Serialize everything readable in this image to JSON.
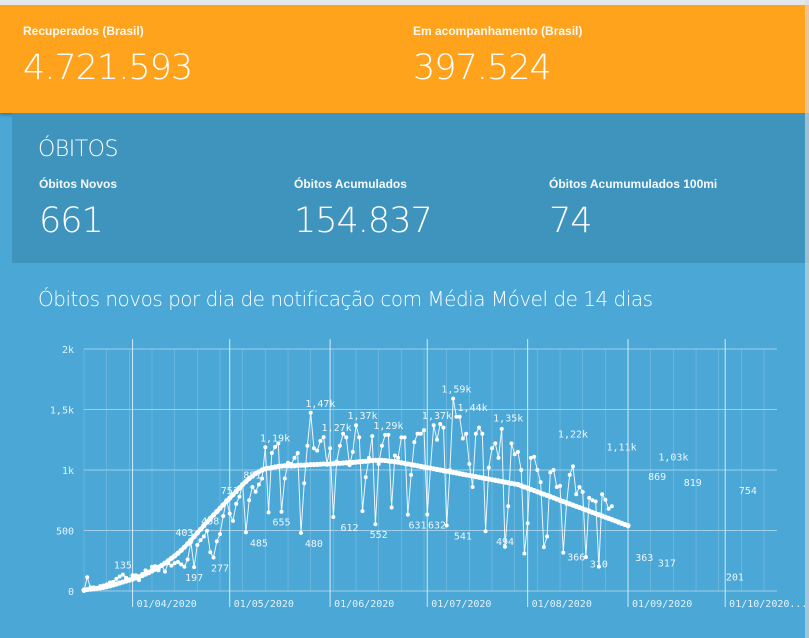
{
  "cards": {
    "recuperados": {
      "label": "Recuperados (Brasil)",
      "value": "4.721.593"
    },
    "acompanhamento": {
      "label": "Em acompanhamento (Brasil)",
      "value": "397.524"
    }
  },
  "obitos": {
    "title": "ÓBITOS",
    "novos": {
      "label": "Óbitos Novos",
      "value": "661"
    },
    "acumulados": {
      "label": "Óbitos Acumulados",
      "value": "154.837"
    },
    "por100mi": {
      "label": "Óbitos Acumumulados 100mi",
      "value": "74"
    }
  },
  "chart_data": {
    "type": "line",
    "title": "Óbitos novos por dia de notificação com Média Móvel de 14 dias",
    "xlabel": "",
    "ylabel": "",
    "ylim": [
      0,
      2000
    ],
    "y_ticks": [
      "0",
      "500",
      "1k",
      "1,5k",
      "2k"
    ],
    "x_ticks": [
      "01/04/2020",
      "01/05/2020",
      "01/06/2020",
      "01/07/2020",
      "01/08/2020",
      "01/09/2020",
      "01/10/2020..."
    ],
    "x_range": [
      "2020-03-17",
      "2020-10-17"
    ],
    "grid": true,
    "colors": {
      "line": "#ffffff",
      "grid": "#9fcfe8"
    },
    "annotations": [
      {
        "date": "2020-03-29",
        "label": "135",
        "value": 135,
        "pos": "above"
      },
      {
        "date": "2020-04-17",
        "label": "403",
        "value": 403,
        "pos": "above"
      },
      {
        "date": "2020-04-20",
        "label": "197",
        "value": 197,
        "pos": "below"
      },
      {
        "date": "2020-04-25",
        "label": "498",
        "value": 498,
        "pos": "above"
      },
      {
        "date": "2020-04-28",
        "label": "277",
        "value": 277,
        "pos": "below"
      },
      {
        "date": "2020-05-01",
        "label": "751",
        "value": 751,
        "pos": "above"
      },
      {
        "date": "2020-05-08",
        "label": "881",
        "value": 881,
        "pos": "above"
      },
      {
        "date": "2020-05-10",
        "label": "485",
        "value": 485,
        "pos": "below"
      },
      {
        "date": "2020-05-15",
        "label": "1,19k",
        "value": 1188,
        "pos": "above"
      },
      {
        "date": "2020-05-17",
        "label": "655",
        "value": 655,
        "pos": "below"
      },
      {
        "date": "2020-05-27",
        "label": "480",
        "value": 480,
        "pos": "below"
      },
      {
        "date": "2020-05-29",
        "label": "1,47k",
        "value": 1473,
        "pos": "above"
      },
      {
        "date": "2020-06-03",
        "label": "1,27k",
        "value": 1272,
        "pos": "above"
      },
      {
        "date": "2020-06-07",
        "label": "612",
        "value": 612,
        "pos": "below"
      },
      {
        "date": "2020-06-11",
        "label": "1,37k",
        "value": 1370,
        "pos": "above"
      },
      {
        "date": "2020-06-16",
        "label": "552",
        "value": 552,
        "pos": "below"
      },
      {
        "date": "2020-06-19",
        "label": "1,29k",
        "value": 1290,
        "pos": "above"
      },
      {
        "date": "2020-06-28",
        "label": "631",
        "value": 631,
        "pos": "below"
      },
      {
        "date": "2020-07-04",
        "label": "632",
        "value": 632,
        "pos": "below"
      },
      {
        "date": "2020-07-04",
        "label": "1,37k",
        "value": 1370,
        "pos": "above"
      },
      {
        "date": "2020-07-12",
        "label": "541",
        "value": 541,
        "pos": "below"
      },
      {
        "date": "2020-07-10",
        "label": "1,59k",
        "value": 1590,
        "pos": "above"
      },
      {
        "date": "2020-07-15",
        "label": "1,44k",
        "value": 1440,
        "pos": "above"
      },
      {
        "date": "2020-07-26",
        "label": "1,35k",
        "value": 1350,
        "pos": "above"
      },
      {
        "date": "2020-07-25",
        "label": "494",
        "value": 494,
        "pos": "below"
      },
      {
        "date": "2020-08-15",
        "label": "1,22k",
        "value": 1220,
        "pos": "above"
      },
      {
        "date": "2020-08-16",
        "label": "366",
        "value": 366,
        "pos": "below"
      },
      {
        "date": "2020-08-23",
        "label": "310",
        "value": 310,
        "pos": "below"
      },
      {
        "date": "2020-08-30",
        "label": "1,11k",
        "value": 1110,
        "pos": "above"
      },
      {
        "date": "2020-09-06",
        "label": "363",
        "value": 363,
        "pos": "below"
      },
      {
        "date": "2020-09-10",
        "label": "869",
        "value": 869,
        "pos": "above"
      },
      {
        "date": "2020-09-13",
        "label": "317",
        "value": 317,
        "pos": "below"
      },
      {
        "date": "2020-09-15",
        "label": "1,03k",
        "value": 1030,
        "pos": "above"
      },
      {
        "date": "2020-09-21",
        "label": "819",
        "value": 819,
        "pos": "above"
      },
      {
        "date": "2020-10-04",
        "label": "201",
        "value": 201,
        "pos": "below"
      },
      {
        "date": "2020-10-08",
        "label": "754",
        "value": 754,
        "pos": "above"
      }
    ],
    "series": [
      {
        "x_start": "2020-03-17",
        "values": [
          0,
          114,
          30,
          30,
          25,
          40,
          45,
          55,
          70,
          75,
          100,
          120,
          135,
          110,
          95,
          130,
          130,
          90,
          140,
          170,
          160,
          200,
          205,
          170,
          210,
          160,
          230,
          210,
          230,
          240,
          220,
          200,
          260,
          403,
          197,
          380,
          420,
          450,
          498,
          320,
          277,
          410,
          470,
          620,
          751,
          640,
          580,
          720,
          780,
          881,
          485,
          750,
          860,
          820,
          880,
          930,
          1188,
          650,
          1140,
          1190,
          1220,
          655,
          930,
          1060,
          1050,
          1100,
          1140,
          480,
          890,
          1200,
          1473,
          1180,
          1160,
          1240,
          1272,
          1050,
          1180,
          612,
          1070,
          1200,
          1300,
          1270,
          1040,
          1150,
          1370,
          1270,
          660,
          940,
          1100,
          1280,
          552,
          1050,
          1200,
          1290,
          1290,
          690,
          1120,
          1100,
          1270,
          1270,
          631,
          960,
          1230,
          1300,
          1300,
          1330,
          632,
          1020,
          1370,
          1250,
          1380,
          1350,
          541,
          1000,
          1590,
          1440,
          1440,
          1260,
          1300,
          1050,
          860,
          1300,
          1350,
          1300,
          494,
          1020,
          1180,
          1220,
          1100,
          1340,
          366,
          700,
          1220,
          1130,
          1150,
          1000,
          310,
          560,
          1100,
          1110,
          1000,
          900,
          363,
          450,
          980,
          1000,
          860,
          869,
          317,
          720,
          960,
          1030,
          800,
          860,
          819,
          280,
          770,
          750,
          740,
          201,
          800,
          754,
          680,
          700
        ],
        "moving_average": [
          8,
          12,
          15,
          18,
          22,
          26,
          30,
          36,
          42,
          50,
          58,
          66,
          74,
          82,
          90,
          98,
          108,
          118,
          128,
          140,
          152,
          166,
          180,
          196,
          212,
          230,
          250,
          270,
          290,
          312,
          336,
          362,
          390,
          420,
          450,
          480,
          510,
          540,
          570,
          600,
          628,
          656,
          684,
          712,
          740,
          768,
          796,
          824,
          852,
          880,
          905,
          930,
          950,
          970,
          985,
          1000,
          1010,
          1015,
          1020,
          1025,
          1030,
          1032,
          1035,
          1035,
          1033,
          1035,
          1038,
          1040,
          1040,
          1042,
          1045,
          1045,
          1046,
          1048,
          1050,
          1048,
          1050,
          1052,
          1055,
          1055,
          1058,
          1060,
          1062,
          1063,
          1065,
          1068,
          1070,
          1072,
          1075,
          1078,
          1080,
          1080,
          1080,
          1078,
          1075,
          1072,
          1068,
          1065,
          1060,
          1055,
          1050,
          1045,
          1040,
          1035,
          1030,
          1025,
          1020,
          1015,
          1010,
          1005,
          1000,
          995,
          990,
          985,
          980,
          975,
          970,
          965,
          960,
          955,
          950,
          945,
          940,
          935,
          930,
          925,
          920,
          915,
          910,
          905,
          900,
          895,
          890,
          885,
          880,
          870,
          860,
          850,
          840,
          830,
          820,
          810,
          800,
          790,
          780,
          770,
          760,
          750,
          740,
          730,
          720,
          710,
          700,
          690,
          680,
          670,
          660,
          650,
          640,
          630,
          620,
          610,
          600,
          590,
          580,
          570,
          560,
          550,
          540
        ]
      }
    ]
  }
}
